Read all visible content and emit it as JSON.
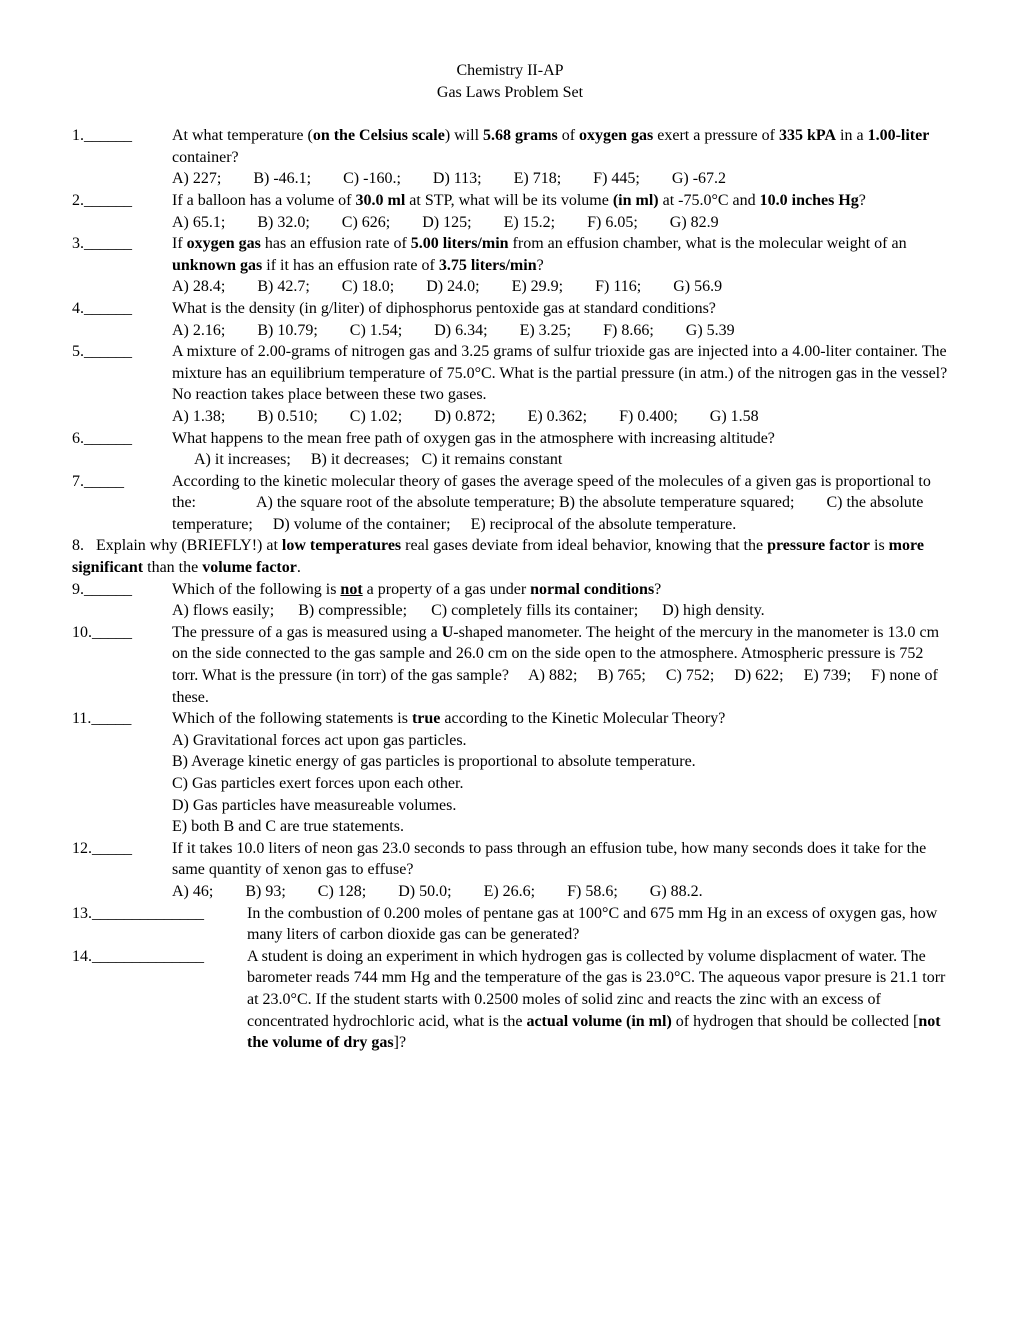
{
  "header": {
    "line1": "Chemistry II-AP",
    "line2": "Gas Laws Problem Set"
  },
  "q1": {
    "num": "1.______",
    "t1": "At what temperature (",
    "b1": "on the Celsius scale",
    "t2": ") will ",
    "b2": "5.68 grams",
    "t3": " of ",
    "b3": "oxygen gas",
    "t4": " exert a pressure of ",
    "b4": "335 kPA",
    "t5": " in a ",
    "b5": "1.00-liter",
    "t6": " container?",
    "cA": "A) 227;",
    "cB": "B) -46.1;",
    "cC": "C) -160.;",
    "cD": "D) 113;",
    "cE": "E) 718;",
    "cF": "F) 445;",
    "cG": "G) -67.2"
  },
  "q2": {
    "num": "2.______",
    "t1": "If a balloon has a volume of ",
    "b1": "30.0 ml",
    "t2": " at STP, what will be its volume ",
    "b2": "(in ml)",
    "t3": " at -75.0°C and ",
    "b3": "10.0 inches Hg",
    "t4": "?",
    "cA": "A) 65.1;",
    "cB": "B) 32.0;",
    "cC": "C) 626;",
    "cD": "D) 125;",
    "cE": "E) 15.2;",
    "cF": "F) 6.05;",
    "cG": "G) 82.9"
  },
  "q3": {
    "num": "3.______",
    "t1": "If ",
    "b1": "oxygen gas",
    "t2": " has an effusion rate of ",
    "b2": "5.00 liters/min",
    "t3": " from an effusion chamber, what is the molecular weight of an ",
    "b3": "unknown gas",
    "t4": " if it has an effusion rate of ",
    "b4": "3.75 liters/min",
    "t5": "?",
    "cA": "A) 28.4;",
    "cB": "B) 42.7;",
    "cC": "C) 18.0;",
    "cD": "D) 24.0;",
    "cE": "E) 29.9;",
    "cF": "F) 116;",
    "cG": "G) 56.9"
  },
  "q4": {
    "num": "4.______",
    "t1": "What is the density (in g/liter) of diphosphorus pentoxide gas at standard conditions?",
    "cA": "A) 2.16;",
    "cB": "B) 10.79;",
    "cC": "C) 1.54;",
    "cD": "D) 6.34;",
    "cE": "E) 3.25;",
    "cF": "F) 8.66;",
    "cG": "G) 5.39"
  },
  "q5": {
    "num": "5.______",
    "t1": "A mixture of 2.00-grams of nitrogen gas and 3.25 grams of sulfur trioxide gas are injected into a 4.00-liter container.  The mixture has an equilibrium temperature of 75.0°C.  What is the partial pressure (in atm.) of the nitrogen gas in the vessel?  No reaction takes place between these two gases.",
    "cA": "A) 1.38;",
    "cB": "B) 0.510;",
    "cC": "C) 1.02;",
    "cD": "D) 0.872;",
    "cE": "E) 0.362;",
    "cF": "F) 0.400;",
    "cG": "G) 1.58"
  },
  "q6": {
    "num": "6.______",
    "t1": "What happens to the mean free path of oxygen gas in the atmosphere with increasing altitude?",
    "cA": "A) it increases;",
    "cB": "B) it decreases;",
    "cC": "C) it remains constant"
  },
  "q7": {
    "num": "7._____",
    "t1": "According to the kinetic molecular theory of gases the average speed of the molecules of a given gas is proportional to the:",
    "cA": "A) the square root of the absolute temperature;",
    "cB": "B) the absolute temperature squared;",
    "cC": "C) the absolute temperature;",
    "cD": "D) volume of the container;",
    "cE": "E) reciprocal of the absolute temperature."
  },
  "q8": {
    "num": "8.",
    "t1": "Explain why (BRIEFLY!) at ",
    "b1": "low temperatures",
    "t2": " real gases deviate from ideal behavior, knowing that the ",
    "b2": "pressure factor",
    "t3": " is ",
    "b3": "more significant",
    "t4": " than the ",
    "b4": "volume factor",
    "t5": "."
  },
  "q9": {
    "num": "9.______",
    "t1": "Which of the following is ",
    "bu1": "not",
    "t2": " a property of a gas under ",
    "b1": "normal conditions",
    "t3": "?",
    "cA": "A) flows easily;",
    "cB": "B) compressible;",
    "cC": "C) completely fills its container;",
    "cD": "D) high density."
  },
  "q10": {
    "num": "10._____",
    "t1": "The pressure of a gas is measured using a ",
    "b1": "U",
    "t2": "-shaped manometer.  The height of the mercury in the manometer is 13.0 cm on the side connected to the gas sample and 26.0 cm on the side open to the atmosphere.  Atmospheric pressure is 752 torr.  What is the pressure (in torr) of the gas sample?",
    "cA": "A) 882;",
    "cB": "B) 765;",
    "cC": "C) 752;",
    "cD": "D) 622;",
    "cE": "E) 739;",
    "cF": "F) none of these."
  },
  "q11": {
    "num": "11._____",
    "t1": "Which of the following statements is ",
    "b1": "true",
    "t2": " according to the Kinetic Molecular Theory?",
    "cA": "A) Gravitational forces act upon gas particles.",
    "cB": "B) Average kinetic energy of gas particles is proportional to absolute temperature.",
    "cC": "C) Gas particles exert forces upon each other.",
    "cD": "D) Gas particles have measureable volumes.",
    "cE": "E) both B and C are true statements."
  },
  "q12": {
    "num": "12._____",
    "t1": "If it takes 10.0 liters of neon gas 23.0 seconds to pass through an effusion tube, how many seconds does it take for the same quantity of xenon gas to effuse?",
    "cA": "A) 46;",
    "cB": "B) 93;",
    "cC": "C) 128;",
    "cD": "D) 50.0;",
    "cE": "E) 26.6;",
    "cF": "F) 58.6;",
    "cG": "G) 88.2."
  },
  "q13": {
    "num": "13.______________",
    "t1": "In the combustion of 0.200 moles of pentane gas at 100°C and 675 mm Hg in an excess of oxygen gas, how many liters of carbon dioxide gas can be generated?"
  },
  "q14": {
    "num": "14.______________",
    "t1": "A student is doing an experiment in which hydrogen gas is collected by volume displacment of water.  The barometer reads 744 mm Hg and the temperature of the gas is 23.0°C.  The aqueous vapor presure is 21.1 torr at 23.0°C.  If the student starts with 0.2500 moles of solid zinc and reacts the zinc with an excess of concentrated hydrochloric acid, what is the ",
    "b1": "actual volume (in ml)",
    "t2": " of hydrogen that should be collected [",
    "b2": "not the volume of dry gas",
    "t3": "]?"
  }
}
